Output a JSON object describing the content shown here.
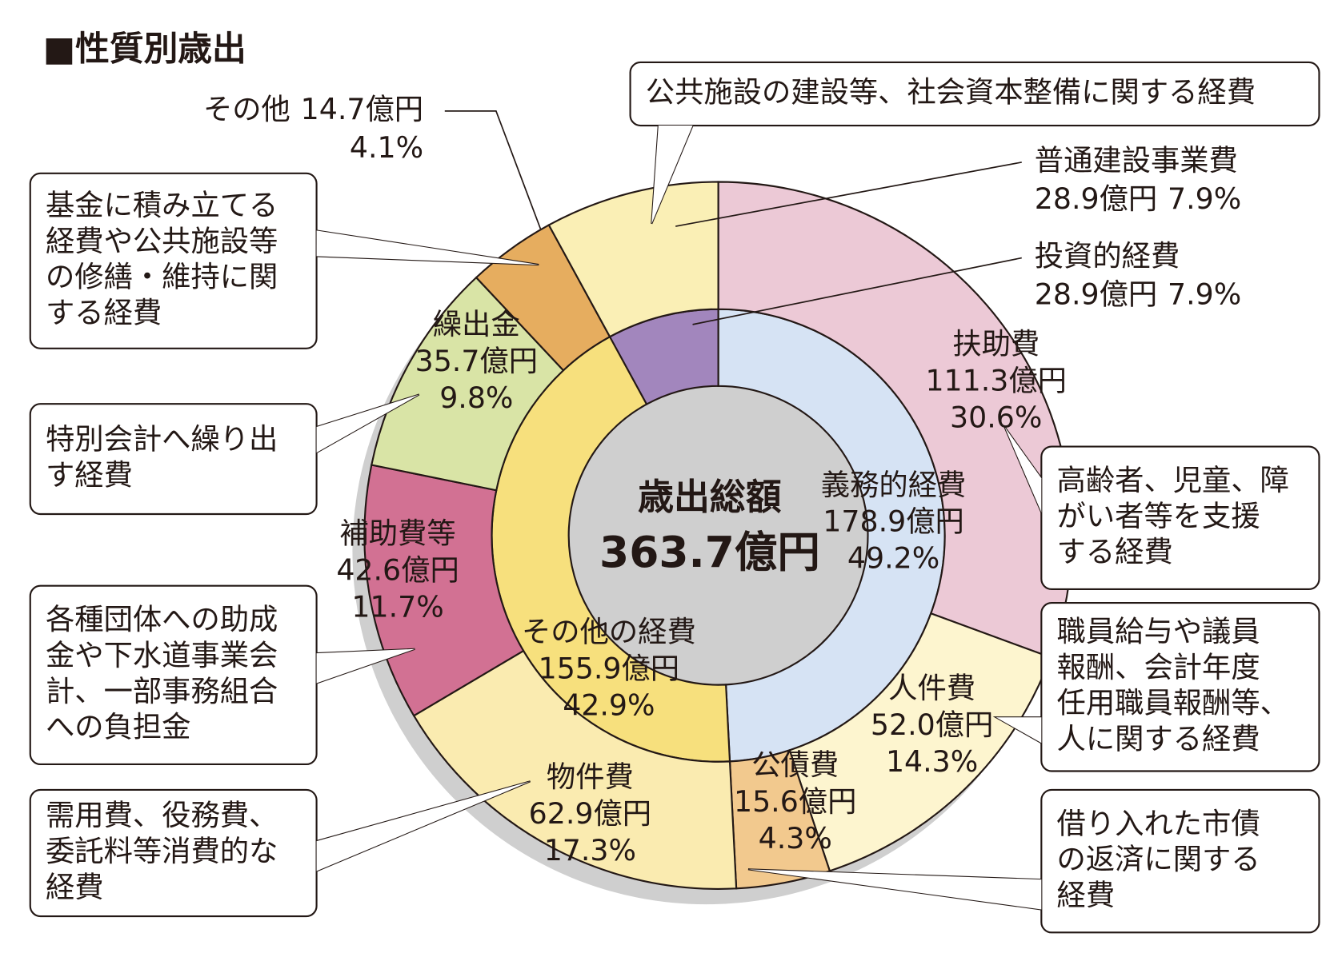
{
  "chart_data": {
    "type": "donut",
    "title": "■性質別歳出",
    "center_label": "歳出総額",
    "total_label": "363.7億円",
    "rings": [
      {
        "categories": [
          "義務的経費",
          "その他の経費",
          "投資的経費"
        ],
        "values": [
          178.9,
          155.9,
          28.9
        ],
        "value_labels": [
          "178.9億円",
          "155.9億円",
          "28.9億円"
        ],
        "percent_labels": [
          "49.2%",
          "42.9%",
          "7.9%"
        ],
        "colors": [
          "#d6e3f4",
          "#f7e07d",
          "#a286bd"
        ]
      },
      {
        "categories": [
          "扶助費",
          "人件費",
          "公債費",
          "物件費",
          "補助費等",
          "繰出金",
          "その他",
          "普通建設事業費"
        ],
        "values": [
          111.3,
          52.0,
          15.6,
          62.9,
          42.6,
          35.7,
          14.7,
          28.9
        ],
        "value_labels": [
          "111.3億円",
          "52.0億円",
          "15.6億円",
          "62.9億円",
          "42.6億円",
          "35.7億円",
          "14.7億円",
          "28.9億円"
        ],
        "percent_labels": [
          "30.6%",
          "14.3%",
          "4.3%",
          "17.3%",
          "11.7%",
          "9.8%",
          "4.1%",
          "7.9%"
        ],
        "colors": [
          "#ecc9d6",
          "#fdf5cf",
          "#f2c98e",
          "#faebb0",
          "#d27193",
          "#d9e4a6",
          "#e6ad5f",
          "#faefb5"
        ]
      }
    ],
    "annotations": [
      {
        "lines": [
          "公共施設の建設等、社会資本整備に関する経費"
        ]
      },
      {
        "lines": [
          "基金に積み立てる",
          "経費や公共施設等",
          "の修繕・維持に関",
          "する経費"
        ]
      },
      {
        "lines": [
          "特別会計へ繰り出",
          "す経費"
        ]
      },
      {
        "lines": [
          "各種団体への助成",
          "金や下水道事業会",
          "計、一部事務組合",
          "への負担金"
        ]
      },
      {
        "lines": [
          "需用費、役務費、",
          "委託料等消費的な",
          "経費"
        ]
      },
      {
        "lines": [
          "高齢者、児童、障",
          "がい者等を支援",
          "する経費"
        ]
      },
      {
        "lines": [
          "職員給与や議員",
          "報酬、会計年度",
          "任用職員報酬等、",
          "人に関する経費"
        ]
      },
      {
        "lines": [
          "借り入れた市債",
          "の返済に関する",
          "経費"
        ]
      }
    ]
  }
}
